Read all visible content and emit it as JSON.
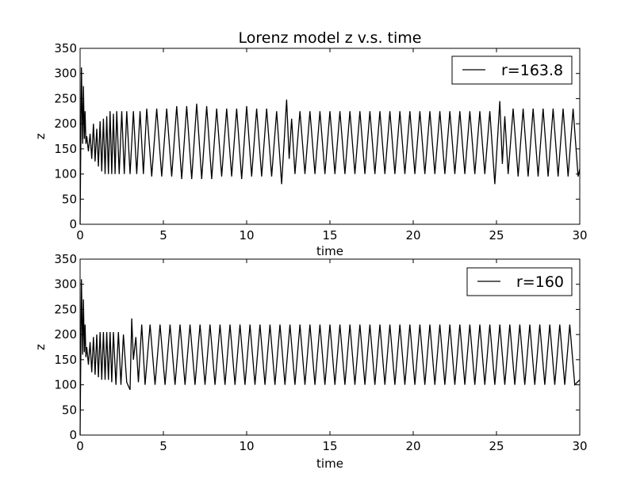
{
  "chart_data": [
    {
      "type": "line",
      "title": "Lorenz model z v.s. time",
      "xlabel": "time",
      "ylabel": "z",
      "xlim": [
        0,
        30
      ],
      "ylim": [
        0,
        350
      ],
      "xticks": [
        0,
        5,
        10,
        15,
        20,
        25,
        30
      ],
      "yticks": [
        0,
        50,
        100,
        150,
        200,
        250,
        300,
        350
      ],
      "legend_position": "top-right",
      "line_color": "#000000",
      "series": [
        {
          "name": "r=163.8",
          "x": [
            0,
            0.08,
            0.15,
            0.2,
            0.25,
            0.3,
            0.35,
            0.4,
            0.5,
            0.6,
            0.7,
            0.8,
            0.9,
            1.0,
            1.1,
            1.2,
            1.3,
            1.4,
            1.5,
            1.6,
            1.7,
            1.8,
            1.9,
            2.0,
            2.1,
            2.2,
            2.35,
            2.5,
            2.65,
            2.8,
            3.0,
            3.2,
            3.4,
            3.6,
            3.8,
            4.0,
            4.3,
            4.6,
            4.9,
            5.2,
            5.5,
            5.8,
            6.1,
            6.4,
            6.7,
            7.0,
            7.3,
            7.6,
            7.9,
            8.2,
            8.5,
            8.8,
            9.1,
            9.4,
            9.7,
            10.0,
            10.3,
            10.6,
            10.9,
            11.2,
            11.5,
            11.8,
            12.1,
            12.4,
            12.55,
            12.7,
            12.9,
            13.2,
            13.5,
            13.8,
            14.1,
            14.4,
            14.7,
            15.0,
            15.3,
            15.6,
            15.9,
            16.2,
            16.5,
            16.8,
            17.1,
            17.4,
            17.7,
            18.0,
            18.3,
            18.6,
            18.9,
            19.2,
            19.5,
            19.8,
            20.1,
            20.4,
            20.7,
            21.0,
            21.3,
            21.6,
            21.9,
            22.2,
            22.5,
            22.8,
            23.1,
            23.4,
            23.7,
            24.0,
            24.3,
            24.6,
            24.9,
            25.2,
            25.35,
            25.5,
            25.7,
            26.0,
            26.3,
            26.6,
            26.9,
            27.2,
            27.5,
            27.8,
            28.1,
            28.4,
            28.7,
            29.0,
            29.3,
            29.6,
            29.9,
            30.0
          ],
          "values": [
            0,
            312,
            160,
            275,
            170,
            225,
            160,
            175,
            145,
            180,
            130,
            200,
            125,
            190,
            115,
            205,
            105,
            210,
            100,
            215,
            100,
            225,
            100,
            220,
            100,
            225,
            100,
            225,
            100,
            225,
            100,
            225,
            100,
            225,
            100,
            230,
            95,
            230,
            95,
            230,
            95,
            235,
            90,
            235,
            90,
            240,
            90,
            235,
            90,
            230,
            95,
            230,
            95,
            230,
            90,
            235,
            95,
            230,
            95,
            230,
            95,
            225,
            80,
            248,
            130,
            210,
            100,
            225,
            100,
            225,
            100,
            225,
            100,
            225,
            100,
            225,
            100,
            225,
            100,
            225,
            100,
            225,
            100,
            225,
            100,
            225,
            100,
            225,
            100,
            225,
            100,
            225,
            100,
            225,
            100,
            225,
            100,
            225,
            100,
            225,
            100,
            225,
            100,
            225,
            100,
            225,
            80,
            245,
            120,
            215,
            100,
            230,
            95,
            230,
            95,
            230,
            95,
            230,
            95,
            230,
            95,
            230,
            95,
            230,
            95,
            110
          ]
        }
      ]
    },
    {
      "type": "line",
      "title": "",
      "xlabel": "time",
      "ylabel": "z",
      "xlim": [
        0,
        30
      ],
      "ylim": [
        0,
        350
      ],
      "xticks": [
        0,
        5,
        10,
        15,
        20,
        25,
        30
      ],
      "yticks": [
        0,
        50,
        100,
        150,
        200,
        250,
        300,
        350
      ],
      "legend_position": "top-right",
      "line_color": "#000000",
      "series": [
        {
          "name": "r=160",
          "x": [
            0,
            0.08,
            0.15,
            0.2,
            0.25,
            0.3,
            0.35,
            0.4,
            0.5,
            0.6,
            0.7,
            0.8,
            0.9,
            1.0,
            1.1,
            1.2,
            1.3,
            1.4,
            1.5,
            1.6,
            1.7,
            1.8,
            1.9,
            2.0,
            2.15,
            2.3,
            2.45,
            2.6,
            2.8,
            3.0,
            3.1,
            3.2,
            3.35,
            3.5,
            3.7,
            3.9,
            4.2,
            4.5,
            4.8,
            5.1,
            5.4,
            5.7,
            6.0,
            6.3,
            6.6,
            6.9,
            7.2,
            7.5,
            7.8,
            8.1,
            8.4,
            8.7,
            9.0,
            9.3,
            9.6,
            9.9,
            10.2,
            10.5,
            10.8,
            11.1,
            11.4,
            11.7,
            12.0,
            12.3,
            12.6,
            12.9,
            13.2,
            13.5,
            13.8,
            14.1,
            14.4,
            14.7,
            15.0,
            15.3,
            15.6,
            15.9,
            16.2,
            16.5,
            16.8,
            17.1,
            17.4,
            17.7,
            18.0,
            18.3,
            18.6,
            18.9,
            19.2,
            19.5,
            19.8,
            20.1,
            20.4,
            20.7,
            21.0,
            21.3,
            21.6,
            21.9,
            22.2,
            22.5,
            22.8,
            23.1,
            23.4,
            23.7,
            24.0,
            24.3,
            24.6,
            24.9,
            25.2,
            25.5,
            25.8,
            26.1,
            26.4,
            26.7,
            27.0,
            27.3,
            27.6,
            27.9,
            28.2,
            28.5,
            28.8,
            29.1,
            29.4,
            29.7,
            30.0
          ],
          "values": [
            0,
            310,
            160,
            270,
            165,
            220,
            155,
            175,
            140,
            185,
            125,
            195,
            120,
            200,
            115,
            205,
            110,
            205,
            110,
            205,
            110,
            205,
            105,
            205,
            100,
            205,
            100,
            200,
            105,
            90,
            232,
            150,
            195,
            105,
            220,
            100,
            220,
            100,
            220,
            100,
            220,
            100,
            220,
            100,
            220,
            100,
            220,
            100,
            220,
            100,
            220,
            100,
            220,
            100,
            220,
            100,
            220,
            100,
            220,
            100,
            220,
            100,
            220,
            100,
            220,
            100,
            220,
            100,
            220,
            100,
            220,
            100,
            220,
            100,
            220,
            100,
            220,
            100,
            220,
            100,
            220,
            100,
            220,
            100,
            220,
            100,
            220,
            100,
            220,
            100,
            220,
            100,
            220,
            100,
            220,
            100,
            220,
            100,
            220,
            100,
            220,
            100,
            220,
            100,
            220,
            100,
            220,
            100,
            220,
            100,
            220,
            100,
            220,
            100,
            220,
            100,
            220,
            100,
            220,
            100,
            220,
            100,
            110
          ]
        }
      ]
    }
  ]
}
